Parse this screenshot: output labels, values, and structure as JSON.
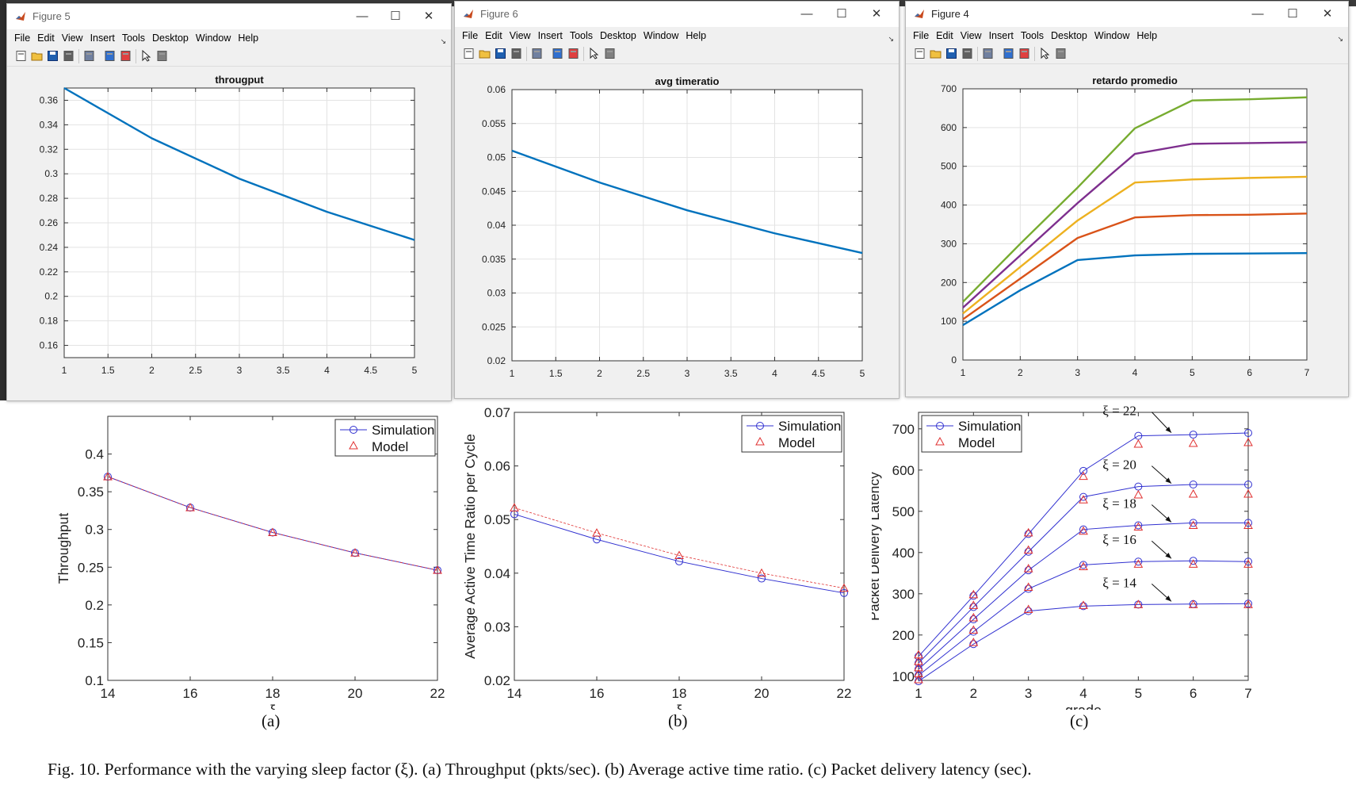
{
  "windows": [
    {
      "title": "Figure 5",
      "menu": [
        "File",
        "Edit",
        "View",
        "Insert",
        "Tools",
        "Desktop",
        "Window",
        "Help"
      ],
      "chart_title": "througput",
      "controls": {
        "minimize": "—",
        "maximize": "☐",
        "close": "✕"
      }
    },
    {
      "title": "Figure 6",
      "menu": [
        "File",
        "Edit",
        "View",
        "Insert",
        "Tools",
        "Desktop",
        "Window",
        "Help"
      ],
      "chart_title": "avg timeratio",
      "controls": {
        "minimize": "—",
        "maximize": "☐",
        "close": "✕"
      }
    },
    {
      "title": "Figure 4",
      "menu": [
        "File",
        "Edit",
        "View",
        "Insert",
        "Tools",
        "Desktop",
        "Window",
        "Help"
      ],
      "chart_title": "retardo promedio",
      "controls": {
        "minimize": "—",
        "maximize": "☐",
        "close": "✕"
      }
    }
  ],
  "toolbar_icons": [
    "new-file-icon",
    "open-folder-icon",
    "save-icon",
    "print-icon",
    "print-preview-icon",
    "link-plot-icon",
    "insert-legend-icon",
    "pointer-icon",
    "property-editor-icon"
  ],
  "colors": {
    "matlab_blue": "#0072bd",
    "matlab_orange": "#d95319",
    "matlab_yellow": "#edb120",
    "matlab_purple": "#7e2f8e",
    "matlab_green": "#77ac30",
    "sim_blue": "#3030d0",
    "model_red": "#e03030"
  },
  "chart_data": [
    {
      "id": "matlab-throughput",
      "type": "line",
      "title": "througput",
      "x": [
        1,
        2,
        3,
        4,
        5
      ],
      "series": [
        {
          "values": [
            0.37,
            0.329,
            0.296,
            0.269,
            0.246
          ]
        }
      ],
      "xlim": [
        1,
        5
      ],
      "ylim": [
        0.15,
        0.37
      ],
      "xticks": [
        "1",
        "1.5",
        "2",
        "2.5",
        "3",
        "3.5",
        "4",
        "4.5",
        "5"
      ],
      "yticks": [
        "0.16",
        "0.18",
        "0.2",
        "0.22",
        "0.24",
        "0.26",
        "0.28",
        "0.3",
        "0.32",
        "0.34",
        "0.36"
      ],
      "grid": true
    },
    {
      "id": "matlab-timeratio",
      "type": "line",
      "title": "avg timeratio",
      "x": [
        1,
        2,
        3,
        4,
        5
      ],
      "series": [
        {
          "values": [
            0.051,
            0.0463,
            0.0422,
            0.0388,
            0.0359
          ]
        }
      ],
      "xlim": [
        1,
        5
      ],
      "ylim": [
        0.02,
        0.06
      ],
      "xticks": [
        "1",
        "1.5",
        "2",
        "2.5",
        "3",
        "3.5",
        "4",
        "4.5",
        "5"
      ],
      "yticks": [
        "0.02",
        "0.025",
        "0.03",
        "0.035",
        "0.04",
        "0.045",
        "0.05",
        "0.055",
        "0.06"
      ],
      "grid": true
    },
    {
      "id": "matlab-delay",
      "type": "line",
      "title": "retardo promedio",
      "x": [
        1,
        2,
        3,
        4,
        5,
        6,
        7
      ],
      "series": [
        {
          "values": [
            90,
            180,
            258,
            270,
            274,
            275,
            276
          ]
        },
        {
          "values": [
            105,
            210,
            315,
            368,
            374,
            375,
            378
          ]
        },
        {
          "values": [
            120,
            240,
            360,
            458,
            466,
            470,
            473
          ]
        },
        {
          "values": [
            135,
            270,
            405,
            532,
            558,
            560,
            562
          ]
        },
        {
          "values": [
            150,
            300,
            445,
            598,
            670,
            673,
            678
          ]
        }
      ],
      "xlim": [
        1,
        7
      ],
      "ylim": [
        0,
        700
      ],
      "xticks": [
        "1",
        "2",
        "3",
        "4",
        "5",
        "6",
        "7"
      ],
      "yticks": [
        "0",
        "100",
        "200",
        "300",
        "400",
        "500",
        "600",
        "700"
      ],
      "grid": true
    },
    {
      "id": "paper-throughput",
      "type": "line",
      "xlabel": "ξ",
      "ylabel": "Throughput",
      "x": [
        14,
        16,
        18,
        20,
        22
      ],
      "series": [
        {
          "name": "Simulation",
          "values": [
            0.37,
            0.329,
            0.296,
            0.269,
            0.246
          ]
        },
        {
          "name": "Model",
          "values": [
            0.37,
            0.329,
            0.296,
            0.269,
            0.246
          ]
        }
      ],
      "xlim": [
        14,
        22
      ],
      "ylim": [
        0.1,
        0.45
      ],
      "xticks": [
        "14",
        "16",
        "18",
        "20",
        "22"
      ],
      "yticks": [
        "0.1",
        "0.15",
        "0.2",
        "0.25",
        "0.3",
        "0.35",
        "0.4"
      ],
      "legend": "top-right"
    },
    {
      "id": "paper-timeratio",
      "type": "line",
      "xlabel": "ξ",
      "ylabel": "Average Active Time Ratio per Cycle",
      "x": [
        14,
        16,
        18,
        20,
        22
      ],
      "series": [
        {
          "name": "Simulation",
          "values": [
            0.051,
            0.0463,
            0.0422,
            0.039,
            0.0363
          ]
        },
        {
          "name": "Model",
          "values": [
            0.0522,
            0.0475,
            0.0433,
            0.04,
            0.0372
          ]
        }
      ],
      "xlim": [
        14,
        22
      ],
      "ylim": [
        0.02,
        0.07
      ],
      "xticks": [
        "14",
        "16",
        "18",
        "20",
        "22"
      ],
      "yticks": [
        "0.02",
        "0.03",
        "0.04",
        "0.05",
        "0.06",
        "0.07"
      ],
      "legend": "top-right"
    },
    {
      "id": "paper-latency",
      "type": "line",
      "xlabel": "grade",
      "ylabel": "Packet Delivery Latency",
      "x": [
        1,
        2,
        3,
        4,
        5,
        6,
        7
      ],
      "series": [
        {
          "name": "Simulation",
          "values": [
            [
              88,
              178,
              258,
              270,
              274,
              275,
              276
            ],
            [
              102,
              208,
              312,
              370,
              378,
              380,
              378
            ],
            [
              117,
              238,
              357,
              456,
              466,
              472,
              472
            ],
            [
              132,
              268,
              402,
              535,
              560,
              565,
              565
            ],
            [
              148,
              295,
              445,
              598,
              683,
              686,
              690
            ]
          ]
        },
        {
          "name": "Model",
          "values": [
            [
              92,
              182,
              262,
              272,
              274,
              274,
              274
            ],
            [
              106,
              212,
              316,
              366,
              372,
              372,
              372
            ],
            [
              121,
              242,
              361,
              452,
              462,
              466,
              466
            ],
            [
              136,
              272,
              406,
              528,
              540,
              542,
              542
            ],
            [
              152,
              298,
              448,
              585,
              663,
              665,
              667
            ]
          ]
        }
      ],
      "xlim": [
        1,
        7
      ],
      "ylim": [
        90,
        740
      ],
      "xticks": [
        "1",
        "2",
        "3",
        "4",
        "5",
        "6",
        "7"
      ],
      "yticks": [
        "100",
        "200",
        "300",
        "400",
        "500",
        "600",
        "700"
      ],
      "annotations": [
        "ξ = 22",
        "ξ = 20",
        "ξ = 18",
        "ξ = 16",
        "ξ = 14"
      ],
      "legend": "top-left"
    }
  ],
  "sublabels": [
    "(a)",
    "(b)",
    "(c)"
  ],
  "caption": "Fig.  10.  Performance with the varying sleep factor (ξ). (a) Throughput (pkts/sec). (b) Average active time ratio. (c) Packet delivery latency (sec)."
}
